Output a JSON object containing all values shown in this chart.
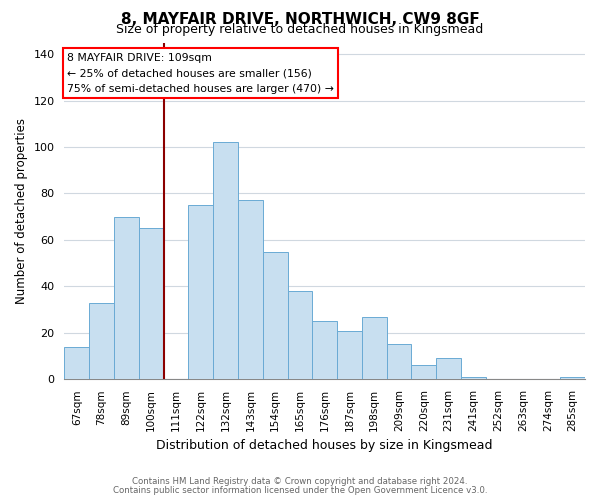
{
  "title_line1": "8, MAYFAIR DRIVE, NORTHWICH, CW9 8GF",
  "title_line2": "Size of property relative to detached houses in Kingsmead",
  "xlabel": "Distribution of detached houses by size in Kingsmead",
  "ylabel": "Number of detached properties",
  "bar_color": "#c8dff0",
  "bar_edge_color": "#6aaad4",
  "bin_labels": [
    "67sqm",
    "78sqm",
    "89sqm",
    "100sqm",
    "111sqm",
    "122sqm",
    "132sqm",
    "143sqm",
    "154sqm",
    "165sqm",
    "176sqm",
    "187sqm",
    "198sqm",
    "209sqm",
    "220sqm",
    "231sqm",
    "241sqm",
    "252sqm",
    "263sqm",
    "274sqm",
    "285sqm"
  ],
  "bar_heights": [
    14,
    33,
    70,
    65,
    0,
    75,
    102,
    77,
    55,
    38,
    25,
    21,
    27,
    15,
    6,
    9,
    1,
    0,
    0,
    0,
    1
  ],
  "ylim": [
    0,
    145
  ],
  "yticks": [
    0,
    20,
    40,
    60,
    80,
    100,
    120,
    140
  ],
  "annotation_title": "8 MAYFAIR DRIVE: 109sqm",
  "annotation_line1": "← 25% of detached houses are smaller (156)",
  "annotation_line2": "75% of semi-detached houses are larger (470) →",
  "red_line_bin_index": 4,
  "footnote_line1": "Contains HM Land Registry data © Crown copyright and database right 2024.",
  "footnote_line2": "Contains public sector information licensed under the Open Government Licence v3.0.",
  "background_color": "#ffffff",
  "grid_color": "#d0d8e0"
}
